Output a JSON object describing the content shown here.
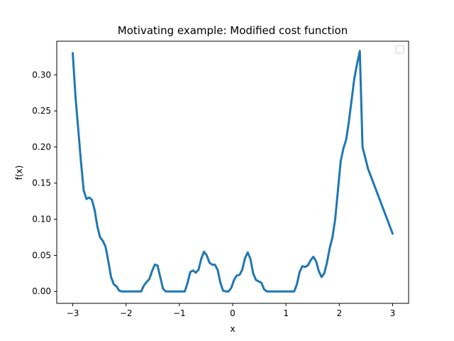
{
  "chart_data": {
    "type": "line",
    "title": "Motivating example: Modified cost function",
    "xlabel": "x",
    "ylabel": "f(x)",
    "xlim": [
      -3.3,
      3.3
    ],
    "ylim": [
      -0.0165,
      0.3465
    ],
    "xticks": [
      -3,
      -2,
      -1,
      0,
      1,
      2,
      3
    ],
    "xtick_labels": [
      "−3",
      "−2",
      "−1",
      "0",
      "1",
      "2",
      "3"
    ],
    "yticks": [
      0.0,
      0.05,
      0.1,
      0.15,
      0.2,
      0.25,
      0.3
    ],
    "ytick_labels": [
      "0.00",
      "0.05",
      "0.10",
      "0.15",
      "0.20",
      "0.25",
      "0.30"
    ],
    "grid": false,
    "legend": {
      "placement": "top-right",
      "entries": []
    },
    "series": [
      {
        "color": "#1f77b4",
        "x": [
          -3.0,
          -2.95,
          -2.9,
          -2.8,
          -2.7,
          -2.6,
          -2.55,
          -2.5,
          -2.45,
          -2.4,
          -2.35,
          -2.3,
          -2.25,
          -2.2,
          -2.15,
          -2.1,
          -2.05,
          -2.0,
          -1.95,
          -1.9,
          -1.85,
          -1.8,
          -1.75,
          -1.7,
          -1.65,
          -1.6,
          -1.55,
          -1.5,
          -1.45,
          -1.4,
          -1.35,
          -1.3,
          -1.25,
          -1.2,
          -1.15,
          -1.1,
          -1.05,
          -1.0,
          -0.95,
          -0.9,
          -0.85,
          -0.8,
          -0.75,
          -0.7,
          -0.65,
          -0.6,
          -0.55,
          -0.5,
          -0.45,
          -0.4,
          -0.35,
          -0.3,
          -0.25,
          -0.2,
          -0.15,
          -0.1,
          -0.05,
          0.0,
          0.05,
          0.1,
          0.15,
          0.2,
          0.25,
          0.3,
          0.35,
          0.4,
          0.45,
          0.5,
          0.55,
          0.6,
          0.65,
          0.7,
          0.75,
          0.8,
          0.85,
          0.9,
          0.95,
          1.0,
          1.05,
          1.1,
          1.15,
          1.2,
          1.25,
          1.3,
          1.35,
          1.4,
          1.45,
          1.5,
          1.55,
          1.6,
          1.65,
          1.7,
          1.75,
          1.8,
          1.85,
          1.9,
          1.95,
          2.0,
          2.05,
          2.1,
          2.15,
          2.2,
          2.25,
          2.3,
          2.35,
          2.4,
          2.45,
          2.5,
          2.55,
          2.6,
          2.65,
          2.7,
          2.75,
          2.8,
          2.85,
          2.9,
          2.95,
          3.0
        ],
        "y": [
          0.33,
          0.27,
          0.225,
          0.18,
          0.14,
          0.128,
          0.13,
          0.127,
          0.113,
          0.09,
          0.075,
          0.07,
          0.062,
          0.042,
          0.02,
          0.01,
          0.007,
          0.001,
          0.0,
          0.0,
          0.0,
          0.0,
          0.0,
          0.0,
          0.0,
          0.0,
          0.008,
          0.013,
          0.017,
          0.028,
          0.037,
          0.036,
          0.02,
          0.004,
          0.0,
          0.0,
          0.0,
          0.0,
          0.0,
          0.0,
          0.0,
          0.0,
          0.012,
          0.027,
          0.029,
          0.026,
          0.03,
          0.045,
          0.055,
          0.05,
          0.04,
          0.037,
          0.037,
          0.03,
          0.012,
          0.001,
          0.0,
          0.0,
          0.005,
          0.016,
          0.022,
          0.023,
          0.03,
          0.046,
          0.054,
          0.045,
          0.025,
          0.016,
          0.014,
          0.012,
          0.003,
          0.0,
          0.0,
          0.0,
          0.0,
          0.0,
          0.0,
          0.0,
          0.0,
          0.0,
          0.0,
          0.0,
          0.01,
          0.027,
          0.035,
          0.034,
          0.036,
          0.043,
          0.048,
          0.042,
          0.028,
          0.02,
          0.025,
          0.04,
          0.06,
          0.075,
          0.1,
          0.14,
          0.18,
          0.198,
          0.21,
          0.235,
          0.265,
          0.295,
          0.315,
          0.333,
          0.2,
          0.185,
          0.17,
          0.16,
          0.15,
          0.14,
          0.13,
          0.12,
          0.11,
          0.1,
          0.09,
          0.08
        ]
      }
    ]
  }
}
